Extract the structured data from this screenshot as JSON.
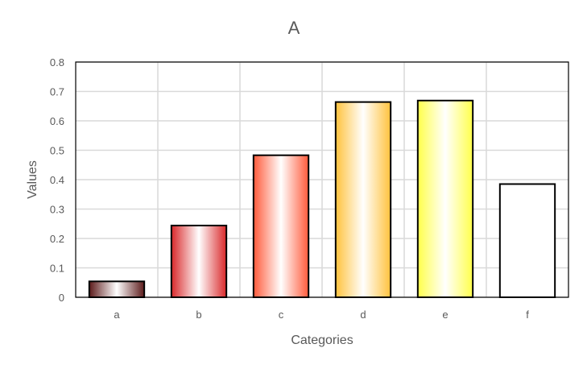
{
  "chart_data": {
    "type": "bar",
    "title": "A",
    "xlabel": "Categories",
    "ylabel": "Values",
    "categories": [
      "a",
      "b",
      "c",
      "d",
      "e",
      "f"
    ],
    "values": [
      0.054,
      0.244,
      0.483,
      0.664,
      0.669,
      0.385
    ],
    "colors": [
      "#5c1a1a",
      "#d9282a",
      "#ff5a3a",
      "#ffc23c",
      "#ffff4a",
      "#ffffff"
    ],
    "ylim": [
      0,
      0.8
    ],
    "yticks": [
      "0",
      "0.1",
      "0.2",
      "0.3",
      "0.4",
      "0.5",
      "0.6",
      "0.7",
      "0.8"
    ],
    "grid": true,
    "legend": "none"
  }
}
